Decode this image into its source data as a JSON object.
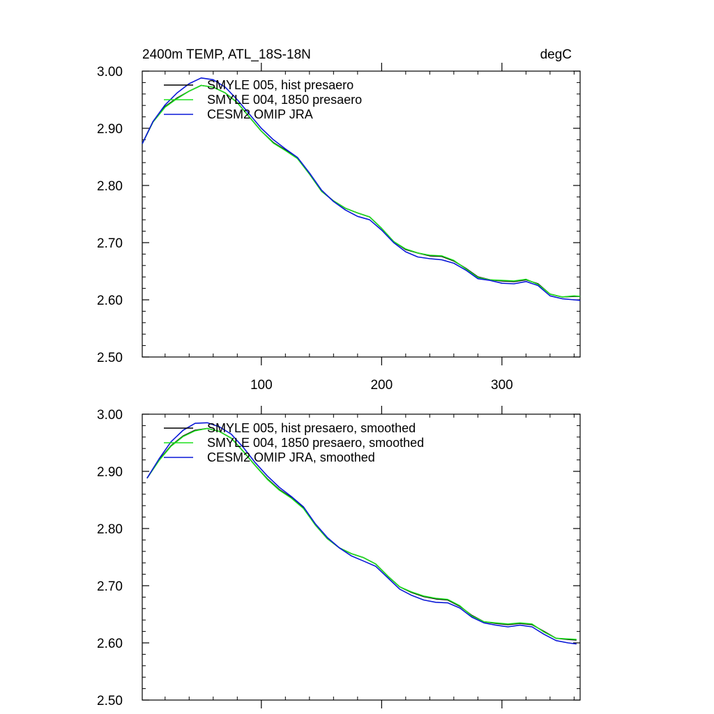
{
  "figure": {
    "title_left": "2400m TEMP, ATL_18S-18N",
    "title_right": "degC"
  },
  "chart_data": [
    {
      "type": "line",
      "title": "",
      "xlabel": "",
      "ylabel": "",
      "xlim": [
        1,
        365
      ],
      "ylim": [
        2.5,
        3.0
      ],
      "x_ticks": [
        100,
        200,
        300
      ],
      "x_tick_labels": [
        "100",
        "200",
        "300"
      ],
      "y_ticks": [
        2.5,
        2.6,
        2.7,
        2.8,
        2.9,
        3.0
      ],
      "y_tick_labels": [
        "2.50",
        "2.60",
        "2.70",
        "2.80",
        "2.90",
        "3.00"
      ],
      "grid": false,
      "legend_position": "top-left",
      "x": [
        1,
        10,
        20,
        30,
        40,
        50,
        60,
        70,
        80,
        90,
        100,
        110,
        120,
        130,
        140,
        150,
        160,
        170,
        180,
        190,
        200,
        210,
        220,
        230,
        240,
        250,
        260,
        270,
        280,
        290,
        300,
        310,
        320,
        330,
        340,
        350,
        360,
        365
      ],
      "series": [
        {
          "name": "SMYLE 005, hist presaero",
          "color": "#000000",
          "values": [
            2.873,
            2.912,
            2.938,
            2.953,
            2.965,
            2.975,
            2.972,
            2.962,
            2.945,
            2.92,
            2.895,
            2.875,
            2.862,
            2.848,
            2.82,
            2.79,
            2.773,
            2.76,
            2.752,
            2.745,
            2.725,
            2.702,
            2.688,
            2.682,
            2.677,
            2.676,
            2.668,
            2.655,
            2.64,
            2.635,
            2.633,
            2.632,
            2.635,
            2.628,
            2.61,
            2.605,
            2.606,
            2.606
          ]
        },
        {
          "name": "SMYLE 004, 1850 presaero",
          "color": "#1ee01e",
          "values": [
            2.873,
            2.911,
            2.937,
            2.952,
            2.965,
            2.975,
            2.972,
            2.962,
            2.945,
            2.92,
            2.895,
            2.874,
            2.861,
            2.847,
            2.82,
            2.79,
            2.773,
            2.76,
            2.752,
            2.745,
            2.725,
            2.702,
            2.689,
            2.682,
            2.678,
            2.677,
            2.669,
            2.654,
            2.639,
            2.635,
            2.634,
            2.633,
            2.636,
            2.627,
            2.61,
            2.605,
            2.607,
            2.606
          ]
        },
        {
          "name": "CESM2 OMIP JRA",
          "color": "#0a18d8",
          "values": [
            2.873,
            2.912,
            2.941,
            2.962,
            2.978,
            2.988,
            2.985,
            2.972,
            2.95,
            2.925,
            2.9,
            2.88,
            2.864,
            2.849,
            2.822,
            2.792,
            2.772,
            2.757,
            2.746,
            2.74,
            2.722,
            2.7,
            2.684,
            2.675,
            2.672,
            2.67,
            2.664,
            2.652,
            2.637,
            2.634,
            2.629,
            2.628,
            2.632,
            2.625,
            2.607,
            2.602,
            2.6,
            2.599
          ]
        }
      ]
    },
    {
      "type": "line",
      "title": "",
      "xlabel": "",
      "ylabel": "",
      "xlim": [
        1,
        365
      ],
      "ylim": [
        2.5,
        3.0
      ],
      "x_ticks": [
        100,
        200,
        300
      ],
      "x_tick_labels": [],
      "y_ticks": [
        2.5,
        2.6,
        2.7,
        2.8,
        2.9,
        3.0
      ],
      "y_tick_labels": [
        "2.50",
        "2.60",
        "2.70",
        "2.80",
        "2.90",
        "3.00"
      ],
      "grid": false,
      "legend_position": "top-left",
      "x": [
        5,
        15,
        25,
        35,
        45,
        55,
        65,
        75,
        85,
        95,
        105,
        115,
        125,
        135,
        145,
        155,
        165,
        175,
        185,
        195,
        205,
        215,
        225,
        235,
        245,
        255,
        265,
        275,
        285,
        295,
        305,
        315,
        325,
        335,
        345,
        355,
        362
      ],
      "series": [
        {
          "name": "SMYLE 005, hist presaero, smoothed",
          "color": "#000000",
          "values": [
            2.888,
            2.92,
            2.945,
            2.962,
            2.972,
            2.975,
            2.97,
            2.958,
            2.935,
            2.91,
            2.887,
            2.868,
            2.854,
            2.836,
            2.806,
            2.782,
            2.766,
            2.756,
            2.749,
            2.738,
            2.717,
            2.698,
            2.688,
            2.681,
            2.677,
            2.675,
            2.664,
            2.648,
            2.637,
            2.634,
            2.632,
            2.634,
            2.632,
            2.62,
            2.608,
            2.606,
            2.605
          ]
        },
        {
          "name": "SMYLE 004, 1850 presaero, smoothed",
          "color": "#1ee01e",
          "values": [
            2.888,
            2.919,
            2.944,
            2.961,
            2.971,
            2.975,
            2.97,
            2.958,
            2.935,
            2.91,
            2.886,
            2.867,
            2.853,
            2.835,
            2.806,
            2.782,
            2.766,
            2.756,
            2.749,
            2.738,
            2.717,
            2.698,
            2.689,
            2.682,
            2.678,
            2.676,
            2.665,
            2.647,
            2.637,
            2.635,
            2.633,
            2.635,
            2.633,
            2.619,
            2.608,
            2.607,
            2.606
          ]
        },
        {
          "name": "CESM2 OMIP JRA, smoothed",
          "color": "#0a18d8",
          "values": [
            2.888,
            2.922,
            2.952,
            2.972,
            2.984,
            2.985,
            2.978,
            2.965,
            2.942,
            2.915,
            2.892,
            2.872,
            2.856,
            2.838,
            2.808,
            2.784,
            2.766,
            2.752,
            2.743,
            2.734,
            2.714,
            2.694,
            2.683,
            2.675,
            2.671,
            2.67,
            2.661,
            2.645,
            2.635,
            2.631,
            2.628,
            2.631,
            2.628,
            2.615,
            2.604,
            2.6,
            2.598
          ]
        }
      ]
    }
  ]
}
